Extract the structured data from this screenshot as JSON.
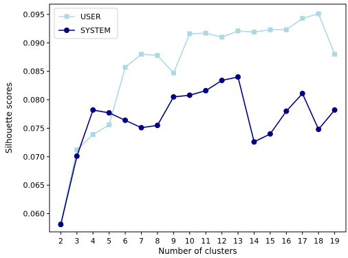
{
  "chart_data": {
    "type": "line",
    "title": "",
    "xlabel": "Number of clusters",
    "ylabel": "Silhouette scores",
    "x": [
      2,
      3,
      4,
      5,
      6,
      7,
      8,
      9,
      10,
      11,
      12,
      13,
      14,
      15,
      16,
      17,
      18,
      19
    ],
    "xlim": [
      1.3,
      19.7
    ],
    "ylim": [
      0.0568,
      0.0968
    ],
    "yticks": [
      0.06,
      0.065,
      0.07,
      0.075,
      0.08,
      0.085,
      0.09,
      0.095
    ],
    "ytick_labels": [
      "0.060",
      "0.065",
      "0.070",
      "0.075",
      "0.080",
      "0.085",
      "0.090",
      "0.095"
    ],
    "grid": false,
    "legend_position": "top-left",
    "series": [
      {
        "name": "USER",
        "color": "#add8e6",
        "marker": "square",
        "values": [
          0.0582,
          0.0712,
          0.0739,
          0.0756,
          0.0857,
          0.088,
          0.0878,
          0.0847,
          0.0916,
          0.0917,
          0.091,
          0.0921,
          0.0919,
          0.0923,
          0.0923,
          0.0943,
          0.0951,
          0.088
        ]
      },
      {
        "name": "SYSTEM",
        "color": "#000080",
        "marker": "circle",
        "values": [
          0.0581,
          0.0701,
          0.0782,
          0.0777,
          0.0764,
          0.0751,
          0.0755,
          0.0805,
          0.0808,
          0.0816,
          0.0834,
          0.084,
          0.0726,
          0.074,
          0.078,
          0.0811,
          0.0748,
          0.0782
        ]
      }
    ]
  }
}
